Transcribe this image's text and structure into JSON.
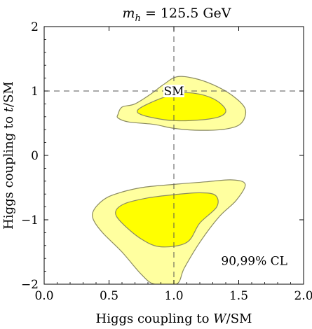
{
  "chart_data": {
    "type": "contour",
    "title": "m_h = 125.5 GeV",
    "title_parts": {
      "symbol": "m",
      "subscript": "h",
      "rest": " = 125.5 GeV"
    },
    "xlabel": "Higgs coupling to W/SM",
    "xlabel_parts": {
      "pre": "Higgs coupling to ",
      "ital": "W",
      "post": "/SM"
    },
    "ylabel": "Higgs coupling to t/SM",
    "ylabel_parts": {
      "pre": "Higgs coupling to ",
      "ital": "t",
      "post": "/SM"
    },
    "xlim": [
      0,
      2
    ],
    "ylim": [
      -2,
      2
    ],
    "xticks": [
      0,
      0.5,
      1,
      1.5,
      2
    ],
    "xtick_labels": [
      "0.0",
      "0.5",
      "1.0",
      "1.5",
      "2.0"
    ],
    "yticks": [
      -2,
      -1,
      0,
      1,
      2
    ],
    "ytick_labels": [
      "−2",
      "−1",
      "0",
      "1",
      "2"
    ],
    "reference_lines": {
      "x": 1,
      "y": 1
    },
    "sm_point": {
      "x": 1,
      "y": 1,
      "label": "SM"
    },
    "annotation": "90,99% CL",
    "colors": {
      "outer_fill": "#ffff9f",
      "inner_fill": "#ffff00",
      "contour_stroke": "#8a8a60",
      "background": "#ffffff"
    },
    "regions": [
      {
        "name": "upper-99",
        "level": "99% CL",
        "points": [
          [
            0.57,
            0.64
          ],
          [
            0.6,
            0.75
          ],
          [
            0.7,
            0.8
          ],
          [
            0.82,
            0.95
          ],
          [
            0.92,
            1.1
          ],
          [
            1.02,
            1.22
          ],
          [
            1.15,
            1.2
          ],
          [
            1.3,
            1.1
          ],
          [
            1.45,
            0.93
          ],
          [
            1.55,
            0.72
          ],
          [
            1.52,
            0.5
          ],
          [
            1.4,
            0.41
          ],
          [
            1.2,
            0.39
          ],
          [
            1.0,
            0.42
          ],
          [
            0.85,
            0.48
          ],
          [
            0.65,
            0.52
          ],
          [
            0.57,
            0.58
          ]
        ]
      },
      {
        "name": "upper-90",
        "level": "90% CL",
        "points": [
          [
            0.72,
            0.7
          ],
          [
            0.78,
            0.78
          ],
          [
            0.92,
            0.9
          ],
          [
            1.05,
            0.97
          ],
          [
            1.2,
            0.95
          ],
          [
            1.33,
            0.85
          ],
          [
            1.4,
            0.7
          ],
          [
            1.35,
            0.6
          ],
          [
            1.2,
            0.55
          ],
          [
            1.0,
            0.54
          ],
          [
            0.85,
            0.58
          ],
          [
            0.74,
            0.64
          ]
        ]
      },
      {
        "name": "lower-99",
        "level": "99% CL",
        "points": [
          [
            0.38,
            -0.86
          ],
          [
            0.45,
            -0.7
          ],
          [
            0.55,
            -0.6
          ],
          [
            0.75,
            -0.5
          ],
          [
            1.0,
            -0.45
          ],
          [
            1.25,
            -0.41
          ],
          [
            1.45,
            -0.38
          ],
          [
            1.55,
            -0.45
          ],
          [
            1.48,
            -0.7
          ],
          [
            1.35,
            -0.95
          ],
          [
            1.2,
            -1.35
          ],
          [
            1.08,
            -1.75
          ],
          [
            1.02,
            -2.0
          ],
          [
            0.85,
            -2.0
          ],
          [
            0.75,
            -1.85
          ],
          [
            0.6,
            -1.5
          ],
          [
            0.45,
            -1.2
          ],
          [
            0.38,
            -1.0
          ]
        ]
      },
      {
        "name": "lower-90",
        "level": "90% CL",
        "points": [
          [
            0.55,
            -0.88
          ],
          [
            0.62,
            -0.75
          ],
          [
            0.8,
            -0.66
          ],
          [
            1.0,
            -0.61
          ],
          [
            1.2,
            -0.58
          ],
          [
            1.32,
            -0.62
          ],
          [
            1.33,
            -0.8
          ],
          [
            1.2,
            -1.05
          ],
          [
            1.1,
            -1.35
          ],
          [
            0.9,
            -1.42
          ],
          [
            0.75,
            -1.3
          ],
          [
            0.6,
            -1.05
          ]
        ]
      }
    ]
  }
}
